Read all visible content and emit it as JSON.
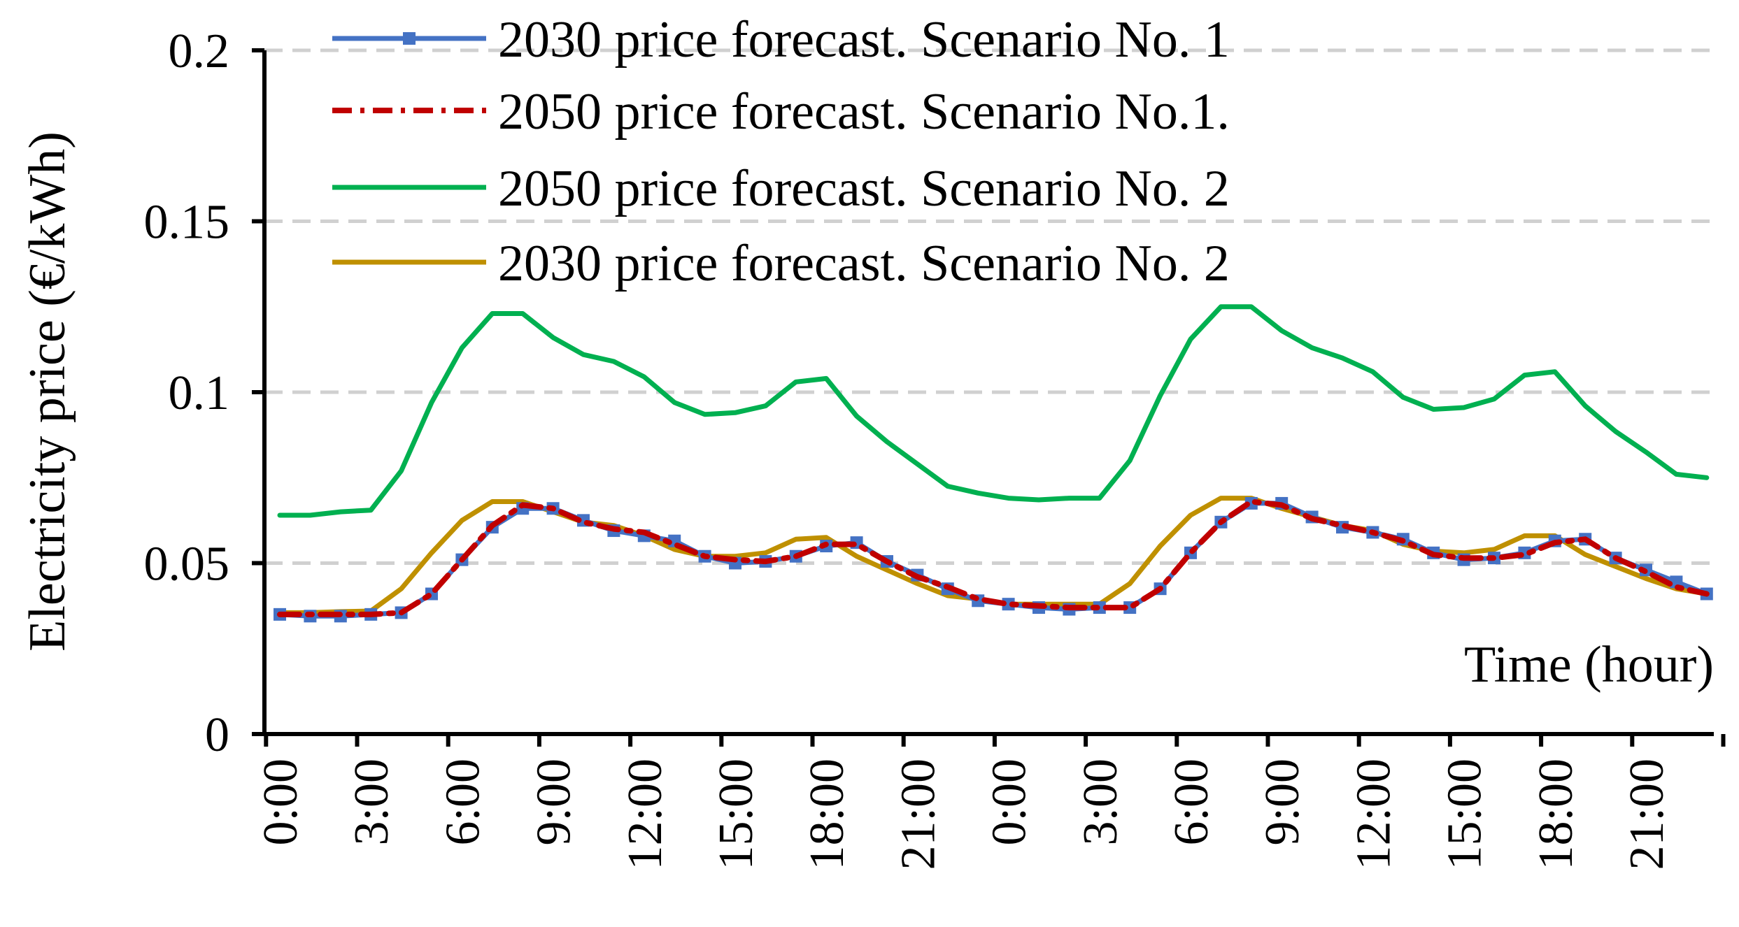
{
  "chart_data": {
    "type": "line",
    "title": "",
    "xlabel": "Time (hour)",
    "ylabel": "Electricity price (€/kWh)",
    "ylim": [
      0,
      0.2
    ],
    "yticks": [
      {
        "value": 0,
        "label": "0"
      },
      {
        "value": 0.05,
        "label": "0.05"
      },
      {
        "value": 0.1,
        "label": "0.1"
      },
      {
        "value": 0.15,
        "label": "0.15"
      },
      {
        "value": 0.2,
        "label": "0.2"
      }
    ],
    "xticks": [
      {
        "index": 0,
        "label": "0:00"
      },
      {
        "index": 3,
        "label": "3:00"
      },
      {
        "index": 6,
        "label": "6:00"
      },
      {
        "index": 9,
        "label": "9:00"
      },
      {
        "index": 12,
        "label": "12:00"
      },
      {
        "index": 15,
        "label": "15:00"
      },
      {
        "index": 18,
        "label": "18:00"
      },
      {
        "index": 21,
        "label": "21:00"
      },
      {
        "index": 24,
        "label": "0:00"
      },
      {
        "index": 27,
        "label": "3:00"
      },
      {
        "index": 30,
        "label": "6:00"
      },
      {
        "index": 33,
        "label": "9:00"
      },
      {
        "index": 36,
        "label": "12:00"
      },
      {
        "index": 39,
        "label": "15:00"
      },
      {
        "index": 42,
        "label": "18:00"
      },
      {
        "index": 45,
        "label": "21:00"
      }
    ],
    "x_hours": [
      0,
      1,
      2,
      3,
      4,
      5,
      6,
      7,
      8,
      9,
      10,
      11,
      12,
      13,
      14,
      15,
      16,
      17,
      18,
      19,
      20,
      21,
      22,
      23,
      24,
      25,
      26,
      27,
      28,
      29,
      30,
      31,
      32,
      33,
      34,
      35,
      36,
      37,
      38,
      39,
      40,
      41,
      42,
      43,
      44,
      45,
      46,
      47
    ],
    "grid": "horizontal dashed",
    "legend_position": "top",
    "series": [
      {
        "name": "2030 price forecast. Scenario No. 1",
        "color": "#4472c4",
        "style": "solid-with-square-markers",
        "values": [
          0.035,
          0.0345,
          0.0345,
          0.035,
          0.0355,
          0.041,
          0.051,
          0.0605,
          0.066,
          0.066,
          0.0625,
          0.0595,
          0.058,
          0.0565,
          0.052,
          0.05,
          0.0505,
          0.052,
          0.055,
          0.056,
          0.0505,
          0.0465,
          0.0425,
          0.039,
          0.038,
          0.037,
          0.0365,
          0.037,
          0.037,
          0.0425,
          0.053,
          0.062,
          0.0675,
          0.0675,
          0.0635,
          0.0605,
          0.059,
          0.057,
          0.053,
          0.051,
          0.0515,
          0.053,
          0.0565,
          0.057,
          0.0515,
          0.048,
          0.0445,
          0.041
        ]
      },
      {
        "name": "2050 price forecast. Scenario No.1.",
        "color": "#c00000",
        "style": "dash-dot",
        "values": [
          0.035,
          0.035,
          0.035,
          0.035,
          0.0355,
          0.041,
          0.051,
          0.061,
          0.067,
          0.066,
          0.062,
          0.06,
          0.059,
          0.0555,
          0.052,
          0.051,
          0.0505,
          0.052,
          0.0555,
          0.0555,
          0.0505,
          0.046,
          0.043,
          0.0395,
          0.038,
          0.0375,
          0.037,
          0.037,
          0.037,
          0.0425,
          0.053,
          0.062,
          0.068,
          0.067,
          0.063,
          0.061,
          0.059,
          0.0565,
          0.0525,
          0.0515,
          0.0515,
          0.0525,
          0.056,
          0.057,
          0.0515,
          0.0475,
          0.043,
          0.041
        ]
      },
      {
        "name": "2050 price forecast. Scenario No. 2",
        "color": "#00b050",
        "style": "solid",
        "values": [
          0.064,
          0.064,
          0.065,
          0.0655,
          0.077,
          0.097,
          0.113,
          0.123,
          0.123,
          0.116,
          0.111,
          0.109,
          0.1045,
          0.097,
          0.0935,
          0.094,
          0.096,
          0.103,
          0.104,
          0.093,
          0.0855,
          0.079,
          0.0725,
          0.0705,
          0.069,
          0.0685,
          0.069,
          0.069,
          0.08,
          0.099,
          0.1155,
          0.125,
          0.125,
          0.118,
          0.113,
          0.11,
          0.106,
          0.0985,
          0.095,
          0.0955,
          0.098,
          0.105,
          0.106,
          0.096,
          0.0885,
          0.0825,
          0.076,
          0.075
        ]
      },
      {
        "name": "2030 price forecast. Scenario No. 2",
        "color": "#bf9000",
        "style": "solid",
        "values": [
          0.0355,
          0.0355,
          0.0358,
          0.036,
          0.0425,
          0.053,
          0.0625,
          0.068,
          0.068,
          0.065,
          0.062,
          0.061,
          0.058,
          0.054,
          0.052,
          0.052,
          0.053,
          0.057,
          0.0575,
          0.052,
          0.048,
          0.044,
          0.0405,
          0.0395,
          0.038,
          0.038,
          0.038,
          0.038,
          0.044,
          0.055,
          0.064,
          0.069,
          0.069,
          0.066,
          0.0635,
          0.061,
          0.0595,
          0.0555,
          0.0535,
          0.053,
          0.054,
          0.058,
          0.058,
          0.0525,
          0.049,
          0.0455,
          0.0425,
          0.041
        ]
      }
    ]
  }
}
